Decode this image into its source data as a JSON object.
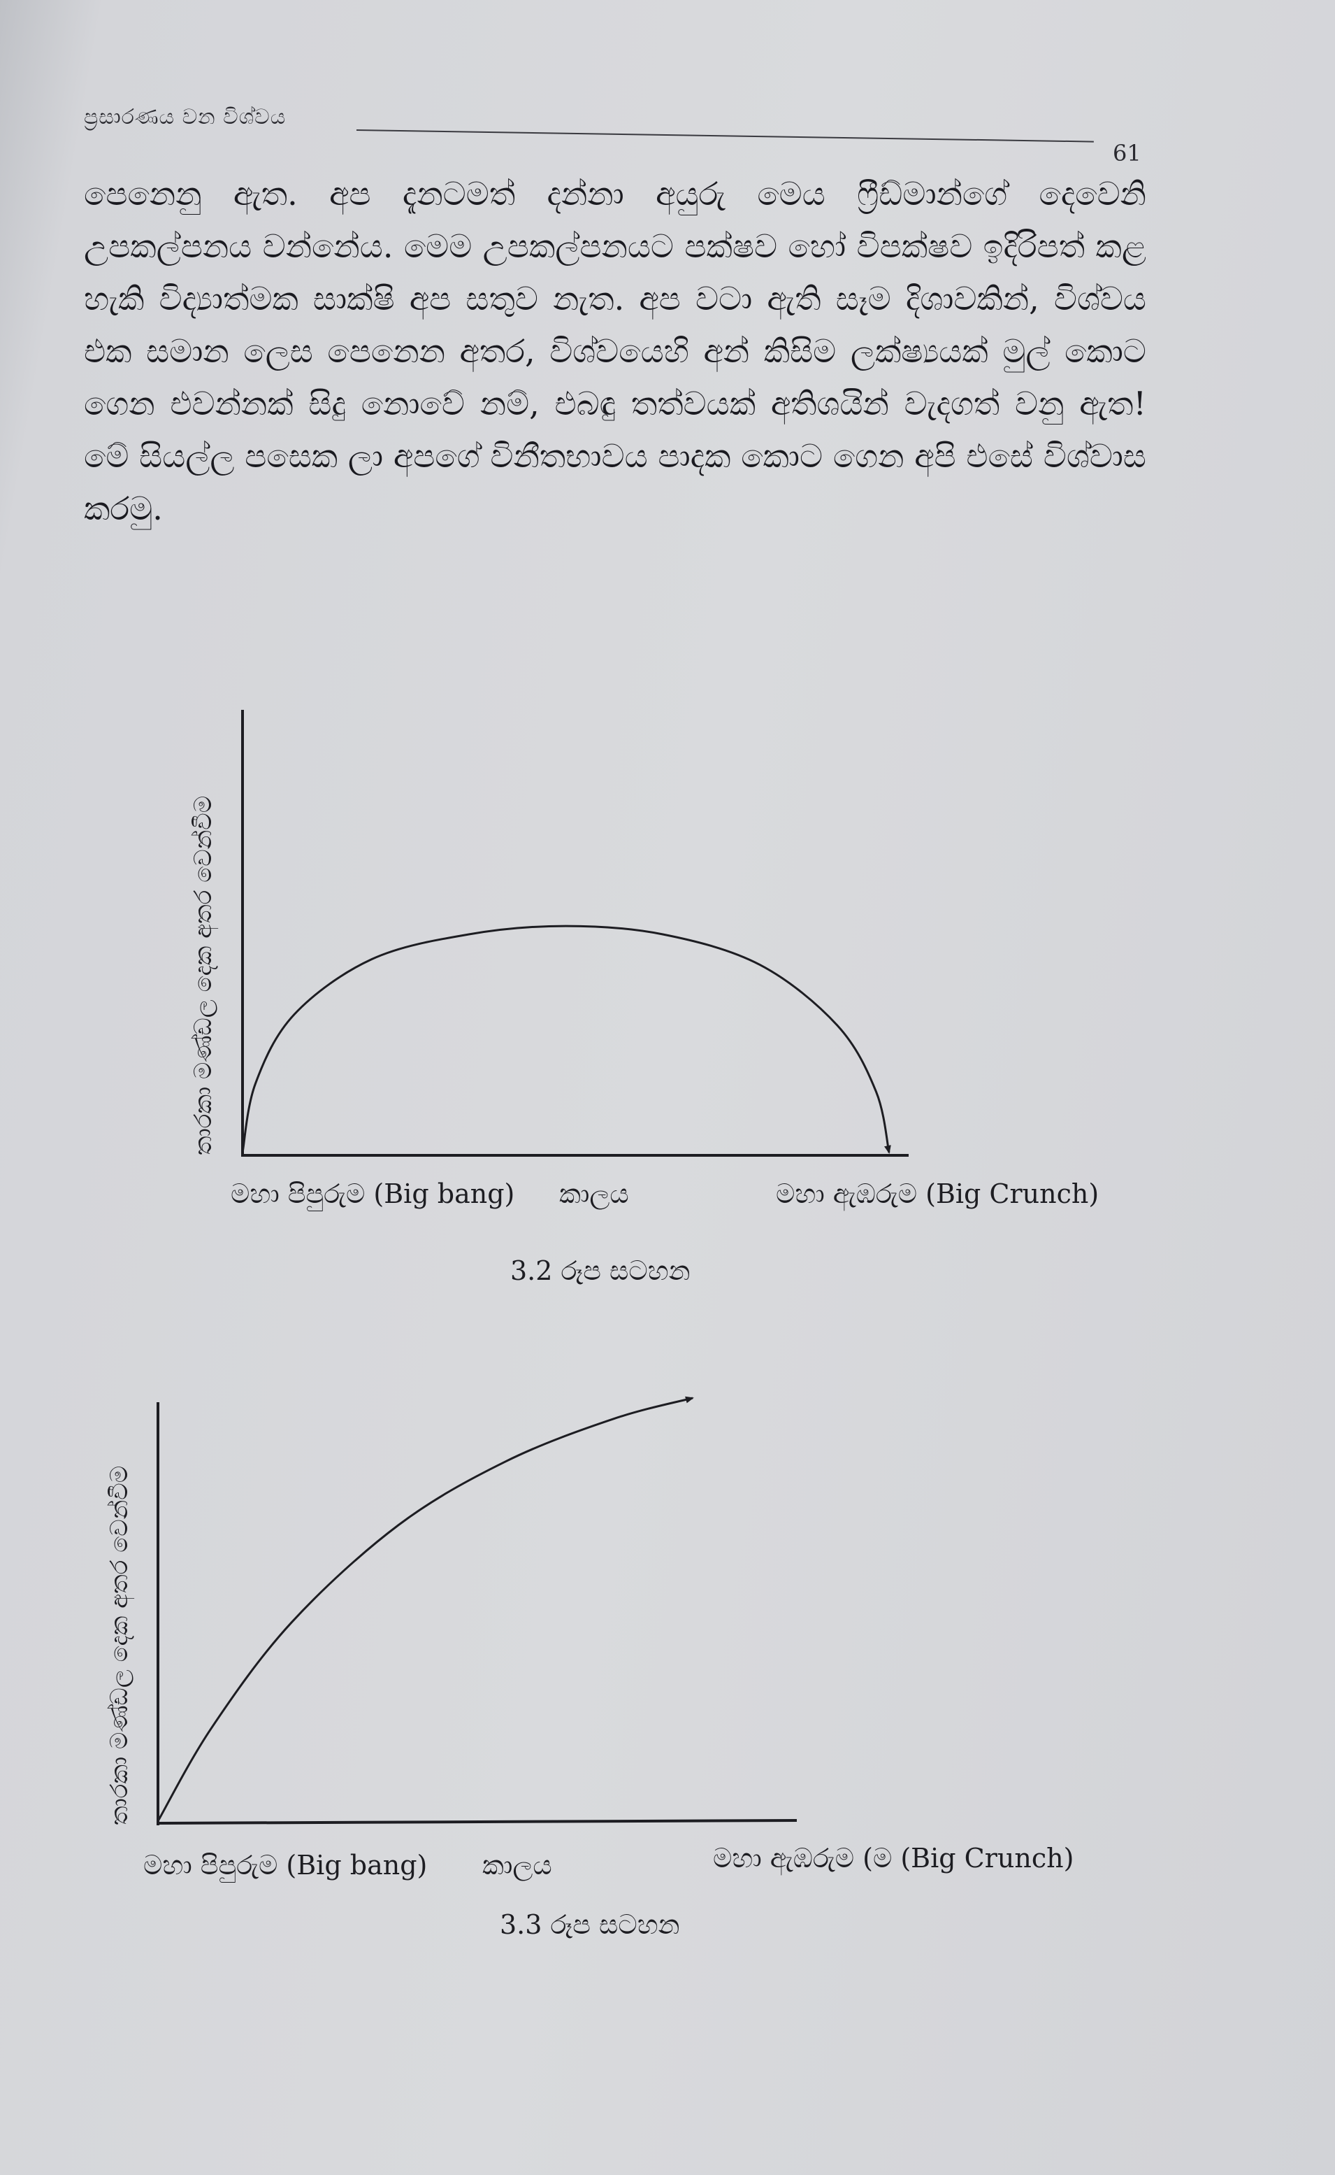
{
  "header": {
    "running_head": "ප්‍රසාරණය වන විශ්වය",
    "page_number": "61"
  },
  "body": {
    "paragraph": "පෙනෙනු ඇත. අප දැනටමත් දන්නා අයුරු මෙය ෆ්‍රීඩ්මාන්ගේ දෙවෙනි උපකල්පනය වන්නේය. මෙම උපකල්පනයට පක්ෂව හෝ විපක්ෂව ඉදිරිපත් කළ හැකි විද්‍යාත්මක සාක්ෂි අප සතුව නැත. අප වටා ඇති සෑම දිශාවකින්, විශ්වය එක සමාන ලෙස පෙනෙන අතර, විශ්වයෙහි අන් කිසිම ලක්ෂ්‍යයක් මුල් කොට ගෙන එවන්නක් සිදු නොවේ නම්, එබඳු තත්වයක් අතිශයින් වැදගත් වනු ඇත! මේ සියල්ල පසෙක ලා අපගේ විනීතභාවය පාදක කොට ගෙන අපි එසේ විශ්වාස කරමු."
  },
  "figures": [
    {
      "caption": "3.2 රූප සටහන",
      "ylabel": "තාරකා මණ්ඩල දෙක අතර වෙන්වීම",
      "x_start_label": "මහා පිපුරුම (Big bang)",
      "x_mid_label": "කාලය",
      "x_end_label": "මහා ඇඹරුම (Big Crunch)",
      "chart_data": {
        "type": "line",
        "title": "",
        "xlabel": "කාලය",
        "ylabel": "තාරකා මණ්ඩල දෙක අතර වෙන්වීම",
        "series": [
          {
            "x": [
              0,
              0.02,
              0.08,
              0.2,
              0.35,
              0.5,
              0.65,
              0.8,
              0.92,
              0.98,
              1.0
            ],
            "y": [
              0,
              0.25,
              0.5,
              0.7,
              0.79,
              0.82,
              0.79,
              0.68,
              0.46,
              0.22,
              0.0
            ]
          }
        ],
        "arrow_at_end": true
      }
    },
    {
      "caption": "3.3 රූප සටහන",
      "ylabel": "තාරකා මණ්ඩල දෙක අතර වෙන්වීම",
      "x_start_label": "මහා පිපුරුම (Big bang)",
      "x_mid_label": "කාලය",
      "x_end_label": "මහා ඇඹරුම (ම (Big Crunch)",
      "chart_data": {
        "type": "line",
        "title": "",
        "xlabel": "කාලය",
        "ylabel": "තාරකා මණ්ඩල දෙක අතර වෙන්වීම",
        "series": [
          {
            "x": [
              0,
              0.1,
              0.25,
              0.45,
              0.65,
              0.85,
              1.0
            ],
            "y": [
              0,
              0.22,
              0.47,
              0.7,
              0.85,
              0.95,
              1.0
            ]
          }
        ],
        "arrow_at_end": true
      }
    }
  ]
}
